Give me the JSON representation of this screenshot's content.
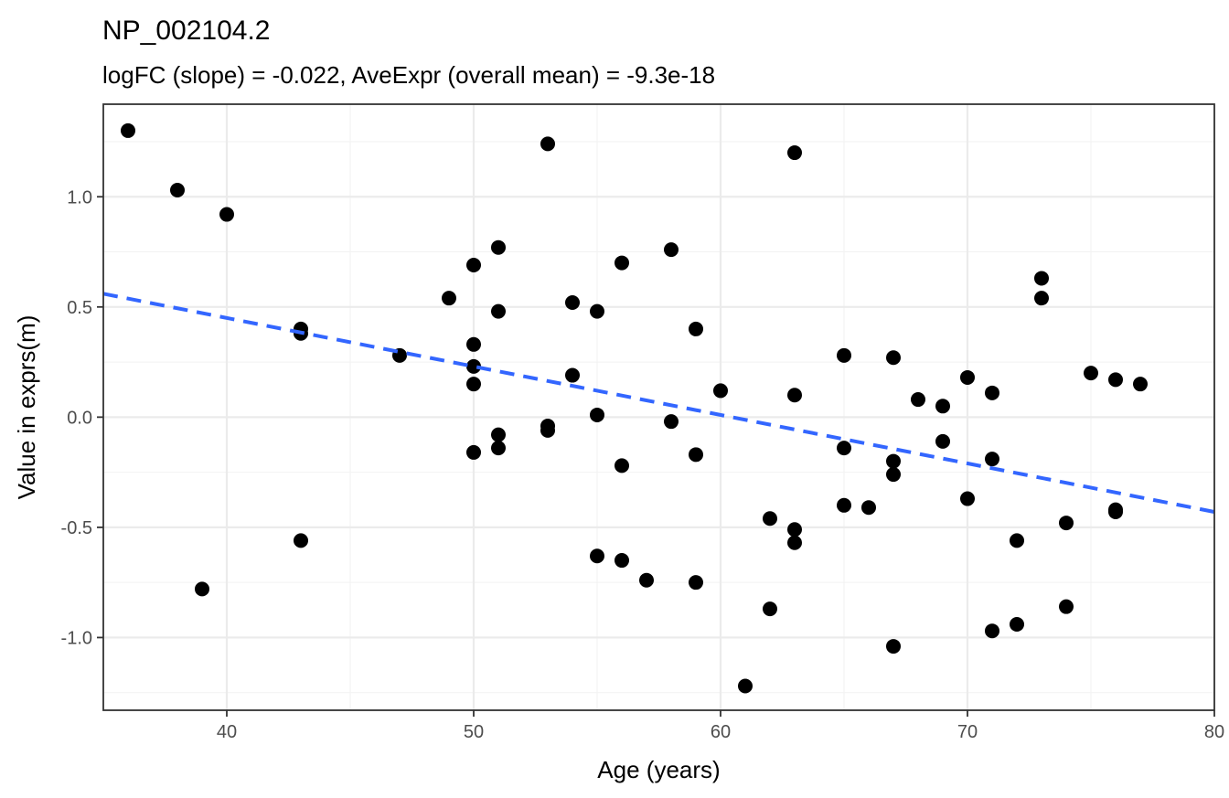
{
  "chart_data": {
    "type": "scatter",
    "title": "NP_002104.2",
    "subtitle": "logFC (slope) = -0.022, AveExpr (overall mean) = -9.3e-18",
    "xlabel": "Age (years)",
    "ylabel": "Value in exprs(m)",
    "xlim": [
      35,
      80
    ],
    "ylim": [
      -1.33,
      1.42
    ],
    "x_ticks": [
      40,
      50,
      60,
      70,
      80
    ],
    "x_tick_labels": [
      "40",
      "50",
      "60",
      "70",
      "80"
    ],
    "y_ticks": [
      -1.0,
      -0.5,
      0.0,
      0.5,
      1.0
    ],
    "y_tick_labels": [
      "-1.0",
      "-0.5",
      "0.0",
      "0.5",
      "1.0"
    ],
    "grid": true,
    "theme": "bw",
    "point_color": "#000000",
    "fit_line": {
      "style": "dashed",
      "color": "#3366FF",
      "x": [
        35,
        80
      ],
      "y": [
        0.56,
        -0.43
      ]
    },
    "points": [
      {
        "x": 36,
        "y": 1.3
      },
      {
        "x": 38,
        "y": 1.03
      },
      {
        "x": 39,
        "y": -0.78
      },
      {
        "x": 40,
        "y": 0.92
      },
      {
        "x": 43,
        "y": 0.4
      },
      {
        "x": 43,
        "y": 0.38
      },
      {
        "x": 43,
        "y": -0.56
      },
      {
        "x": 47,
        "y": 0.28
      },
      {
        "x": 49,
        "y": 0.54
      },
      {
        "x": 50,
        "y": 0.69
      },
      {
        "x": 50,
        "y": 0.33
      },
      {
        "x": 50,
        "y": 0.23
      },
      {
        "x": 50,
        "y": 0.15
      },
      {
        "x": 50,
        "y": -0.16
      },
      {
        "x": 51,
        "y": 0.77
      },
      {
        "x": 51,
        "y": 0.48
      },
      {
        "x": 51,
        "y": -0.08
      },
      {
        "x": 51,
        "y": -0.14
      },
      {
        "x": 53,
        "y": 1.24
      },
      {
        "x": 53,
        "y": -0.04
      },
      {
        "x": 53,
        "y": -0.06
      },
      {
        "x": 54,
        "y": 0.52
      },
      {
        "x": 54,
        "y": 0.19
      },
      {
        "x": 55,
        "y": 0.48
      },
      {
        "x": 55,
        "y": 0.01
      },
      {
        "x": 55,
        "y": -0.63
      },
      {
        "x": 56,
        "y": 0.7
      },
      {
        "x": 56,
        "y": -0.22
      },
      {
        "x": 56,
        "y": -0.65
      },
      {
        "x": 57,
        "y": -0.74
      },
      {
        "x": 58,
        "y": 0.76
      },
      {
        "x": 58,
        "y": -0.02
      },
      {
        "x": 59,
        "y": 0.4
      },
      {
        "x": 59,
        "y": -0.17
      },
      {
        "x": 59,
        "y": -0.75
      },
      {
        "x": 60,
        "y": 0.12
      },
      {
        "x": 61,
        "y": -1.22
      },
      {
        "x": 62,
        "y": -0.46
      },
      {
        "x": 62,
        "y": -0.87
      },
      {
        "x": 63,
        "y": 1.2
      },
      {
        "x": 63,
        "y": 0.1
      },
      {
        "x": 63,
        "y": -0.51
      },
      {
        "x": 63,
        "y": -0.57
      },
      {
        "x": 65,
        "y": 0.28
      },
      {
        "x": 65,
        "y": -0.14
      },
      {
        "x": 65,
        "y": -0.4
      },
      {
        "x": 66,
        "y": -0.41
      },
      {
        "x": 67,
        "y": 0.27
      },
      {
        "x": 67,
        "y": -0.2
      },
      {
        "x": 67,
        "y": -0.26
      },
      {
        "x": 67,
        "y": -1.04
      },
      {
        "x": 68,
        "y": 0.08
      },
      {
        "x": 69,
        "y": 0.05
      },
      {
        "x": 69,
        "y": -0.11
      },
      {
        "x": 70,
        "y": 0.18
      },
      {
        "x": 70,
        "y": -0.37
      },
      {
        "x": 71,
        "y": 0.11
      },
      {
        "x": 71,
        "y": -0.19
      },
      {
        "x": 71,
        "y": -0.97
      },
      {
        "x": 72,
        "y": -0.56
      },
      {
        "x": 72,
        "y": -0.94
      },
      {
        "x": 73,
        "y": 0.63
      },
      {
        "x": 73,
        "y": 0.54
      },
      {
        "x": 74,
        "y": -0.48
      },
      {
        "x": 74,
        "y": -0.86
      },
      {
        "x": 75,
        "y": 0.2
      },
      {
        "x": 76,
        "y": 0.17
      },
      {
        "x": 76,
        "y": -0.42
      },
      {
        "x": 76,
        "y": -0.43
      },
      {
        "x": 77,
        "y": 0.15
      }
    ]
  }
}
